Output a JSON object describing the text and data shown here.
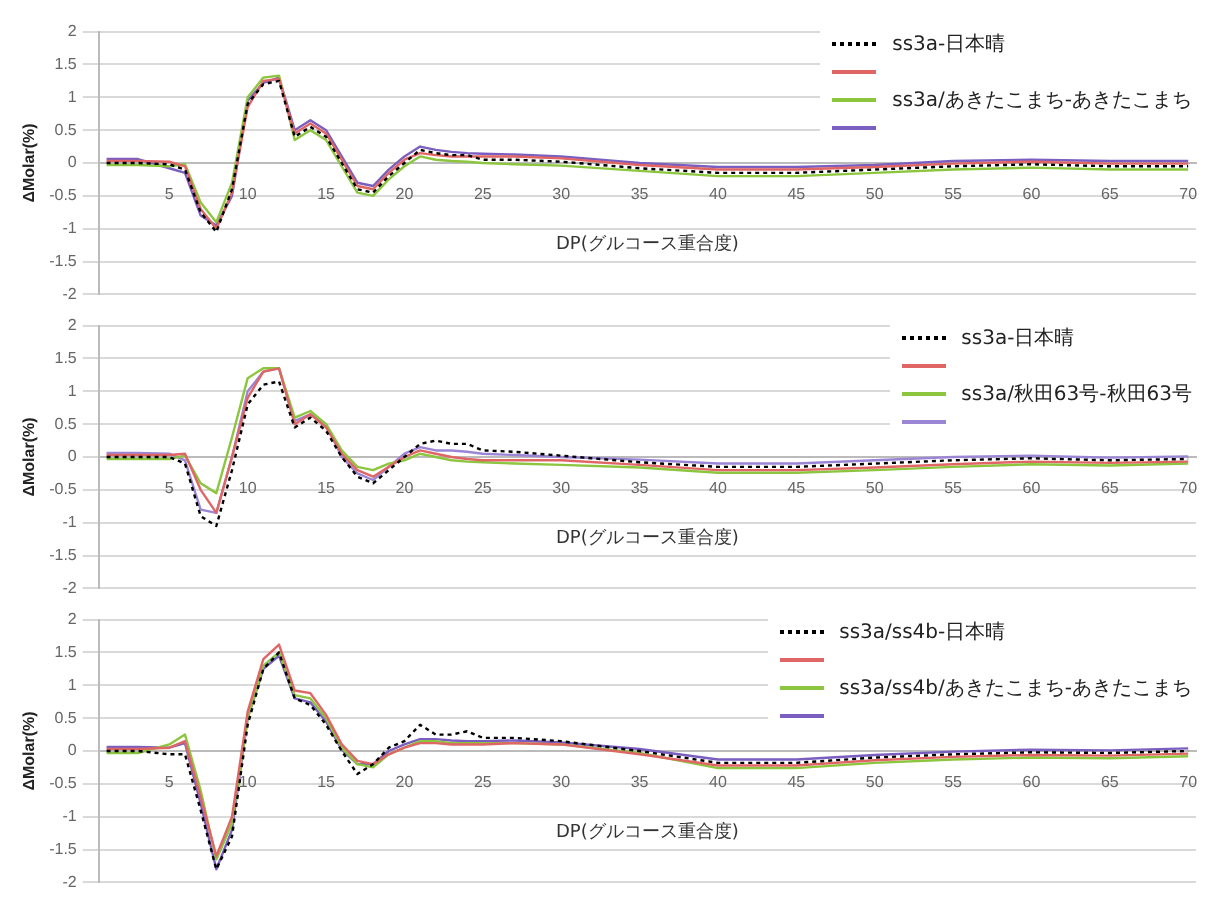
{
  "chart_data": [
    {
      "type": "line",
      "xlabel": "DP(グルコース重合度)",
      "ylabel": "ΔMolar(%)",
      "x": [
        1,
        3,
        5,
        6,
        7,
        8,
        9,
        10,
        11,
        12,
        13,
        14,
        15,
        16,
        17,
        18,
        19,
        20,
        21,
        22,
        23,
        24,
        25,
        27,
        30,
        35,
        40,
        45,
        50,
        55,
        60,
        65,
        70
      ],
      "xlim": [
        0.5,
        70.5
      ],
      "xticks": [
        5,
        10,
        15,
        20,
        25,
        30,
        35,
        40,
        45,
        50,
        55,
        60,
        65,
        70
      ],
      "ylim": [
        -2,
        2
      ],
      "yticks": [
        -2,
        -1.5,
        -1,
        -0.5,
        0,
        0.5,
        1,
        1.5,
        2
      ],
      "grid": "y",
      "legend": "top right",
      "marker": "none",
      "series": [
        {
          "name": "ss3a-日本晴",
          "color": "#000000",
          "line_style": "dotted",
          "values": [
            0,
            0,
            -0.02,
            -0.1,
            -0.75,
            -1.05,
            -0.4,
            0.9,
            1.2,
            1.25,
            0.4,
            0.55,
            0.4,
            0,
            -0.4,
            -0.45,
            -0.2,
            0,
            0.2,
            0.15,
            0.12,
            0.12,
            0.05,
            0.05,
            0.02,
            -0.08,
            -0.15,
            -0.15,
            -0.1,
            -0.05,
            -0.02,
            -0.05,
            -0.05
          ]
        },
        {
          "color": "#e06666",
          "line_style": "solid",
          "values": [
            0.03,
            0.03,
            0.02,
            -0.05,
            -0.7,
            -1.0,
            -0.45,
            0.85,
            1.25,
            1.28,
            0.45,
            0.6,
            0.45,
            0.05,
            -0.35,
            -0.4,
            -0.15,
            0.05,
            0.15,
            0.12,
            0.1,
            0.1,
            0.1,
            0.1,
            0.07,
            -0.03,
            -0.1,
            -0.1,
            -0.06,
            -0.01,
            0.02,
            -0.01,
            -0.01
          ]
        },
        {
          "name": "ss3a/あきたこまち-あきたこまち",
          "color": "#8cc63f",
          "line_style": "solid",
          "values": [
            -0.03,
            -0.03,
            -0.05,
            -0.02,
            -0.6,
            -0.9,
            -0.3,
            1.0,
            1.3,
            1.33,
            0.35,
            0.5,
            0.35,
            -0.05,
            -0.45,
            -0.5,
            -0.25,
            -0.05,
            0.1,
            0.05,
            0.03,
            0.02,
            0,
            -0.02,
            -0.04,
            -0.12,
            -0.2,
            -0.2,
            -0.15,
            -0.1,
            -0.07,
            -0.1,
            -0.1
          ]
        },
        {
          "color": "#7a5fc0",
          "line_style": "solid",
          "values": [
            0.06,
            0.06,
            -0.08,
            -0.15,
            -0.8,
            -0.95,
            -0.5,
            0.95,
            1.22,
            1.3,
            0.5,
            0.65,
            0.5,
            0.1,
            -0.3,
            -0.35,
            -0.1,
            0.1,
            0.25,
            0.2,
            0.17,
            0.15,
            0.14,
            0.13,
            0.1,
            0,
            -0.06,
            -0.06,
            -0.03,
            0.03,
            0.05,
            0.03,
            0.03
          ]
        }
      ]
    },
    {
      "type": "line",
      "xlabel": "DP(グルコース重合度)",
      "ylabel": "ΔMolar(%)",
      "x": [
        1,
        3,
        5,
        6,
        7,
        8,
        9,
        10,
        11,
        12,
        13,
        14,
        15,
        16,
        17,
        18,
        19,
        20,
        21,
        22,
        23,
        24,
        25,
        27,
        30,
        35,
        40,
        45,
        50,
        55,
        60,
        65,
        70
      ],
      "xlim": [
        0.5,
        70.5
      ],
      "xticks": [
        5,
        10,
        15,
        20,
        25,
        30,
        35,
        40,
        45,
        50,
        55,
        60,
        65,
        70
      ],
      "ylim": [
        -2,
        2
      ],
      "yticks": [
        -2,
        -1.5,
        -1,
        -0.5,
        0,
        0.5,
        1,
        1.5,
        2
      ],
      "grid": "y",
      "legend": "top right",
      "marker": "none",
      "series": [
        {
          "name": "ss3a-日本晴",
          "color": "#000000",
          "line_style": "dotted",
          "values": [
            0,
            0,
            0,
            -0.1,
            -0.9,
            -1.05,
            -0.2,
            0.8,
            1.1,
            1.15,
            0.45,
            0.6,
            0.4,
            0,
            -0.3,
            -0.4,
            -0.2,
            0,
            0.2,
            0.25,
            0.2,
            0.2,
            0.1,
            0.08,
            0.02,
            -0.08,
            -0.15,
            -0.15,
            -0.1,
            -0.05,
            -0.02,
            -0.05,
            -0.03
          ]
        },
        {
          "color": "#e06666",
          "line_style": "solid",
          "values": [
            0.03,
            0.03,
            0.03,
            0.05,
            -0.5,
            -0.85,
            0,
            0.9,
            1.3,
            1.35,
            0.5,
            0.65,
            0.45,
            0.05,
            -0.2,
            -0.3,
            -0.15,
            0,
            0.1,
            0.05,
            0,
            -0.03,
            -0.05,
            -0.05,
            -0.05,
            -0.12,
            -0.2,
            -0.2,
            -0.16,
            -0.11,
            -0.07,
            -0.09,
            -0.07
          ]
        },
        {
          "name": "ss3a/秋田63号-秋田63号",
          "color": "#8cc63f",
          "line_style": "solid",
          "values": [
            -0.03,
            -0.03,
            -0.03,
            0.02,
            -0.4,
            -0.55,
            0.3,
            1.2,
            1.35,
            1.35,
            0.6,
            0.7,
            0.5,
            0.1,
            -0.15,
            -0.2,
            -0.1,
            -0.05,
            0.05,
            0,
            -0.05,
            -0.07,
            -0.08,
            -0.1,
            -0.12,
            -0.16,
            -0.24,
            -0.24,
            -0.2,
            -0.15,
            -0.11,
            -0.13,
            -0.1
          ]
        },
        {
          "color": "#9b86d6",
          "line_style": "solid",
          "values": [
            0.06,
            0.06,
            0.05,
            -0.05,
            -0.8,
            -0.85,
            0,
            1.0,
            1.3,
            1.35,
            0.55,
            0.65,
            0.5,
            0,
            -0.25,
            -0.35,
            -0.15,
            0.05,
            0.15,
            0.1,
            0.1,
            0.08,
            0.05,
            0.03,
            0,
            -0.04,
            -0.1,
            -0.1,
            -0.05,
            0,
            0.02,
            -0.01,
            0.01
          ]
        }
      ]
    },
    {
      "type": "line",
      "xlabel": "DP(グルコース重合度)",
      "ylabel": "ΔMolar(%)",
      "x": [
        1,
        3,
        5,
        6,
        7,
        8,
        9,
        10,
        11,
        12,
        13,
        14,
        15,
        16,
        17,
        18,
        19,
        20,
        21,
        22,
        23,
        24,
        25,
        27,
        30,
        35,
        40,
        45,
        50,
        55,
        60,
        65,
        70
      ],
      "xlim": [
        0.5,
        70.5
      ],
      "xticks": [
        5,
        10,
        15,
        20,
        25,
        30,
        35,
        40,
        45,
        50,
        55,
        60,
        65,
        70
      ],
      "ylim": [
        -2,
        2
      ],
      "yticks": [
        -2,
        -1.5,
        -1,
        -0.5,
        0,
        0.5,
        1,
        1.5,
        2
      ],
      "grid": "y",
      "legend": "top right",
      "marker": "none",
      "series": [
        {
          "name": "ss3a/ss4b-日本晴",
          "color": "#000000",
          "line_style": "dotted",
          "values": [
            0,
            0,
            -0.05,
            -0.05,
            -0.9,
            -1.8,
            -1.3,
            0.4,
            1.25,
            1.5,
            0.8,
            0.7,
            0.4,
            0,
            -0.35,
            -0.2,
            0.05,
            0.15,
            0.4,
            0.25,
            0.25,
            0.3,
            0.2,
            0.2,
            0.15,
            0,
            -0.18,
            -0.18,
            -0.1,
            -0.05,
            -0.02,
            -0.03,
            0
          ]
        },
        {
          "color": "#e06666",
          "line_style": "solid",
          "values": [
            0.03,
            0.03,
            0.05,
            0.15,
            -0.7,
            -1.6,
            -1.0,
            0.6,
            1.4,
            1.62,
            0.92,
            0.88,
            0.55,
            0.1,
            -0.15,
            -0.2,
            -0.05,
            0.05,
            0.12,
            0.12,
            0.1,
            0.1,
            0.1,
            0.12,
            0.1,
            -0.05,
            -0.22,
            -0.22,
            -0.14,
            -0.09,
            -0.06,
            -0.07,
            -0.04
          ]
        },
        {
          "name": "ss3a/ss4b/あきたこまち-あきたこまち",
          "color": "#8cc63f",
          "line_style": "solid",
          "values": [
            -0.03,
            -0.03,
            0.1,
            0.25,
            -0.6,
            -1.65,
            -1.1,
            0.5,
            1.3,
            1.5,
            0.85,
            0.8,
            0.5,
            0.05,
            -0.2,
            -0.25,
            -0.05,
            0.05,
            0.15,
            0.15,
            0.12,
            0.12,
            0.12,
            0.12,
            0.1,
            -0.03,
            -0.26,
            -0.26,
            -0.18,
            -0.13,
            -0.1,
            -0.11,
            -0.08
          ]
        },
        {
          "color": "#7a5fc0",
          "line_style": "solid",
          "values": [
            0.06,
            0.06,
            0.05,
            0.12,
            -0.8,
            -1.8,
            -1.2,
            0.5,
            1.25,
            1.45,
            0.8,
            0.74,
            0.45,
            0.02,
            -0.2,
            -0.2,
            0,
            0.1,
            0.18,
            0.18,
            0.16,
            0.15,
            0.15,
            0.16,
            0.13,
            0.03,
            -0.13,
            -0.13,
            -0.06,
            -0.01,
            0.02,
            0.01,
            0.04
          ]
        }
      ]
    }
  ]
}
